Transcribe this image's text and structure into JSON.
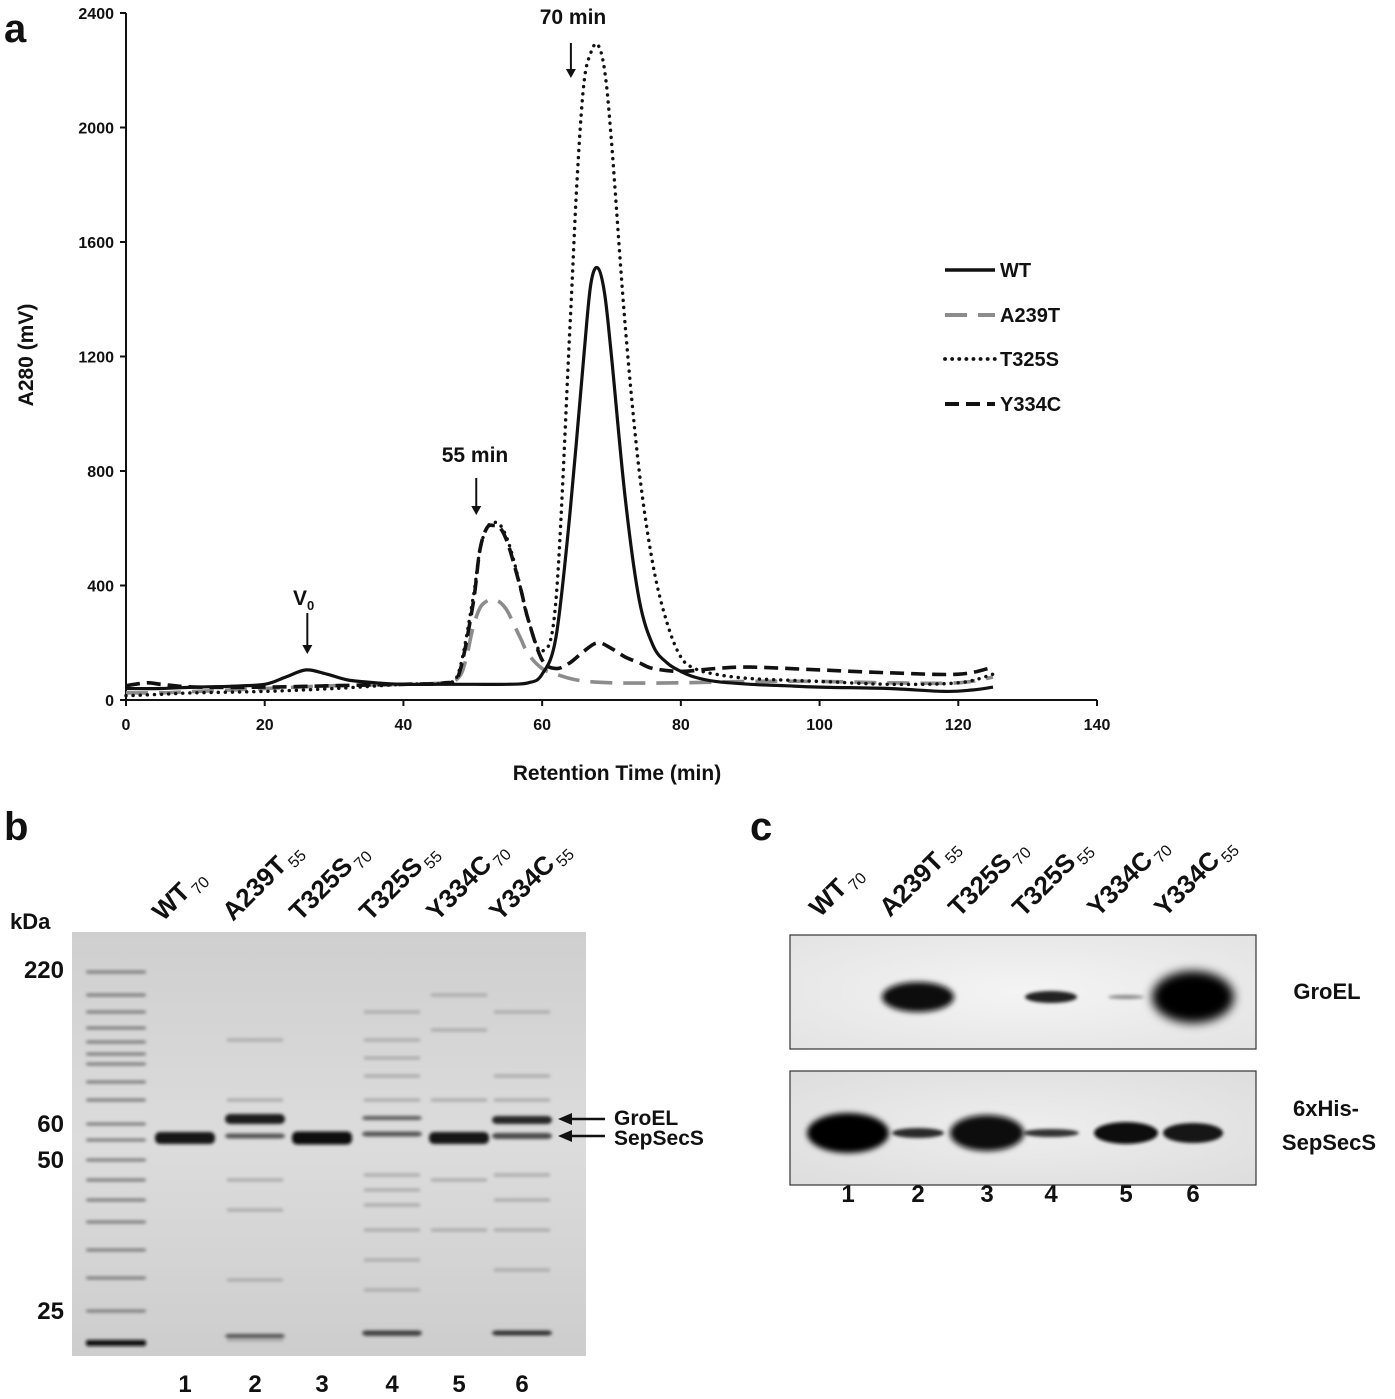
{
  "panel_a": {
    "letter": "a",
    "chart_data": {
      "type": "line",
      "xlabel": "Retention Time (min)",
      "ylabel": "A280 (mV)",
      "xlim": [
        0,
        140
      ],
      "ylim": [
        0,
        2400
      ],
      "x_ticks": [
        "0",
        "20",
        "40",
        "60",
        "80",
        "100",
        "120",
        "140"
      ],
      "y_ticks": [
        "0",
        "400",
        "800",
        "1200",
        "1600",
        "2000",
        "2400"
      ],
      "grid": false,
      "legend_position": "right",
      "annotations": [
        {
          "text": "70 min",
          "x": 64,
          "y": 2280
        },
        {
          "text": "55 min",
          "x": 50.5,
          "y": 640
        },
        {
          "text": "V",
          "sub": "0",
          "x": 26,
          "y": 250
        }
      ],
      "series": [
        {
          "name": "WT",
          "color": "#111111",
          "dash": "solid",
          "x": [
            0,
            5,
            10,
            15,
            20,
            23,
            26,
            29,
            32,
            36,
            40,
            45,
            50,
            55,
            58,
            60,
            62,
            64,
            66,
            67,
            68,
            69,
            70,
            72,
            74,
            76,
            78,
            80,
            82,
            85,
            90,
            95,
            100,
            110,
            118,
            122,
            125
          ],
          "y": [
            40,
            40,
            45,
            48,
            55,
            80,
            105,
            90,
            70,
            60,
            55,
            55,
            55,
            55,
            60,
            90,
            220,
            650,
            1200,
            1450,
            1510,
            1420,
            1200,
            700,
            350,
            190,
            130,
            100,
            80,
            65,
            55,
            50,
            45,
            40,
            30,
            35,
            45
          ]
        },
        {
          "name": "A239T",
          "color": "#8c8c8c",
          "dash": "long-dash",
          "x": [
            0,
            5,
            10,
            20,
            30,
            40,
            46,
            48,
            49,
            50,
            51,
            52,
            53,
            54,
            55,
            56,
            57,
            58,
            60,
            62,
            65,
            70,
            80,
            90,
            100,
            110,
            120,
            125
          ],
          "y": [
            25,
            25,
            30,
            40,
            50,
            55,
            60,
            80,
            140,
            250,
            320,
            345,
            350,
            340,
            310,
            260,
            210,
            160,
            110,
            90,
            70,
            60,
            60,
            65,
            65,
            60,
            60,
            80
          ]
        },
        {
          "name": "T325S",
          "color": "#111111",
          "dash": "dotted",
          "x": [
            0,
            5,
            10,
            20,
            30,
            40,
            46,
            48,
            50,
            51,
            52,
            53,
            54,
            55,
            56,
            57,
            58,
            60,
            62,
            64,
            65,
            66,
            67,
            68,
            69,
            70,
            72,
            74,
            76,
            78,
            80,
            82,
            85,
            90,
            100,
            110,
            120,
            125
          ],
          "y": [
            15,
            20,
            25,
            30,
            40,
            55,
            60,
            100,
            350,
            520,
            600,
            620,
            610,
            560,
            480,
            380,
            280,
            170,
            350,
            1300,
            1800,
            2150,
            2260,
            2290,
            2200,
            1950,
            1300,
            800,
            470,
            270,
            150,
            110,
            90,
            75,
            65,
            55,
            60,
            90
          ]
        },
        {
          "name": "Y334C",
          "color": "#111111",
          "dash": "dashed",
          "x": [
            0,
            3,
            5,
            10,
            20,
            30,
            40,
            46,
            48,
            50,
            51,
            52,
            53,
            54,
            55,
            56,
            57,
            58,
            60,
            62,
            64,
            66,
            68,
            70,
            72,
            74,
            76,
            80,
            85,
            90,
            100,
            110,
            120,
            125
          ],
          "y": [
            50,
            60,
            55,
            45,
            45,
            50,
            55,
            60,
            90,
            330,
            520,
            600,
            610,
            600,
            550,
            470,
            380,
            280,
            140,
            110,
            130,
            170,
            200,
            180,
            150,
            130,
            110,
            100,
            110,
            115,
            105,
            95,
            90,
            115
          ]
        }
      ]
    }
  },
  "panel_b": {
    "letter": "b",
    "kda_label": "kDa",
    "markers": [
      {
        "label": "220",
        "kda": 220
      },
      {
        "label": "60",
        "kda": 60
      },
      {
        "label": "50",
        "kda": 50
      },
      {
        "label": "25",
        "kda": 25
      }
    ],
    "lane_headers": [
      {
        "main": "WT",
        "sub": "70"
      },
      {
        "main": "A239T",
        "sub": "55"
      },
      {
        "main": "T325S",
        "sub": "70"
      },
      {
        "main": "T325S",
        "sub": "55"
      },
      {
        "main": "Y334C",
        "sub": "70"
      },
      {
        "main": "Y334C",
        "sub": "55"
      }
    ],
    "lane_numbers": [
      "1",
      "2",
      "3",
      "4",
      "5",
      "6"
    ],
    "band_labels": {
      "groel": "GroEL",
      "sepsecs": "SepSecS"
    }
  },
  "panel_c": {
    "letter": "c",
    "lane_headers": [
      {
        "main": "WT",
        "sub": "70"
      },
      {
        "main": "A239T",
        "sub": "55"
      },
      {
        "main": "T325S",
        "sub": "70"
      },
      {
        "main": "T325S",
        "sub": "55"
      },
      {
        "main": "Y334C",
        "sub": "70"
      },
      {
        "main": "Y334C",
        "sub": "55"
      }
    ],
    "lane_numbers": [
      "1",
      "2",
      "3",
      "4",
      "5",
      "6"
    ],
    "blot_labels": {
      "top": "GroEL",
      "bottom_line1": "6xHis-",
      "bottom_line2": "SepSecS"
    }
  }
}
